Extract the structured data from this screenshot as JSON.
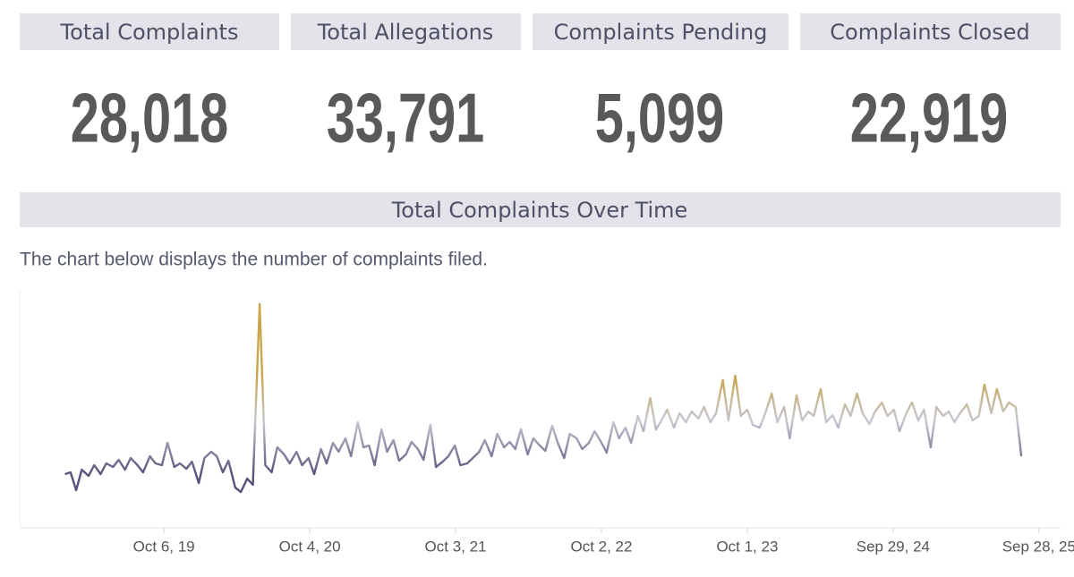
{
  "kpis": [
    {
      "label": "Total Complaints",
      "value": "28,018"
    },
    {
      "label": "Total Allegations",
      "value": "33,791"
    },
    {
      "label": "Complaints Pending",
      "value": "5,099"
    },
    {
      "label": "Complaints Closed",
      "value": "22,919"
    }
  ],
  "chart_data": {
    "type": "line",
    "title": "Total Complaints Over Time",
    "subtitle": "The chart below displays the number of complaints filed.",
    "x": [
      "2019-02-01",
      "2019-02-15",
      "2019-03-01",
      "2019-03-15",
      "2019-04-01",
      "2019-04-15",
      "2019-05-01",
      "2019-05-15",
      "2019-06-01",
      "2019-06-15",
      "2019-07-01",
      "2019-07-15",
      "2019-08-01",
      "2019-08-15",
      "2019-09-01",
      "2019-09-15",
      "2019-10-01",
      "2019-10-15",
      "2019-11-01",
      "2019-11-15",
      "2019-12-01",
      "2019-12-15",
      "2020-01-01",
      "2020-01-15",
      "2020-02-01",
      "2020-02-15",
      "2020-03-01",
      "2020-03-15",
      "2020-04-01",
      "2020-04-15",
      "2020-05-01",
      "2020-05-15",
      "2020-06-01",
      "2020-06-15",
      "2020-07-01",
      "2020-07-15",
      "2020-08-01",
      "2020-08-15",
      "2020-09-01",
      "2020-09-15",
      "2020-10-01",
      "2020-10-15",
      "2020-11-01",
      "2020-11-15",
      "2020-12-01",
      "2020-12-15",
      "2021-01-01",
      "2021-01-15",
      "2021-02-01",
      "2021-02-15",
      "2021-03-01",
      "2021-03-15",
      "2021-04-01",
      "2021-04-15",
      "2021-05-01",
      "2021-05-15",
      "2021-06-01",
      "2021-06-15",
      "2021-07-01",
      "2021-07-15",
      "2021-08-01",
      "2021-08-15",
      "2021-09-01",
      "2021-09-15",
      "2021-10-01",
      "2021-10-15",
      "2021-11-01",
      "2021-11-15",
      "2021-12-01",
      "2021-12-15",
      "2022-01-01",
      "2022-01-15",
      "2022-02-01",
      "2022-02-15",
      "2022-03-01",
      "2022-03-15",
      "2022-04-01",
      "2022-04-15",
      "2022-05-01",
      "2022-05-15",
      "2022-06-01",
      "2022-06-15",
      "2022-07-01",
      "2022-07-15",
      "2022-08-01",
      "2022-08-15",
      "2022-09-01",
      "2022-09-15",
      "2022-10-01",
      "2022-10-15",
      "2022-11-01",
      "2022-11-15",
      "2022-12-01",
      "2022-12-15",
      "2023-01-01",
      "2023-01-15",
      "2023-02-01",
      "2023-02-15",
      "2023-03-01",
      "2023-03-15",
      "2023-04-01",
      "2023-04-15",
      "2023-05-01",
      "2023-05-15",
      "2023-06-01",
      "2023-06-15",
      "2023-07-01",
      "2023-07-15",
      "2023-08-01",
      "2023-08-15",
      "2023-09-01",
      "2023-09-15",
      "2023-10-01",
      "2023-10-15",
      "2023-11-01",
      "2023-11-15",
      "2023-12-01",
      "2023-12-15",
      "2024-01-01",
      "2024-01-15",
      "2024-02-01",
      "2024-02-15",
      "2024-03-01",
      "2024-03-15",
      "2024-04-01",
      "2024-04-15",
      "2024-05-01",
      "2024-05-15",
      "2024-06-01",
      "2024-06-15",
      "2024-07-01",
      "2024-07-15",
      "2024-08-01",
      "2024-08-15",
      "2024-09-01",
      "2024-09-15",
      "2024-10-01",
      "2024-10-15",
      "2024-11-01",
      "2024-11-15",
      "2024-12-01",
      "2024-12-15",
      "2025-01-01",
      "2025-01-15",
      "2025-02-01",
      "2025-02-15",
      "2025-03-01",
      "2025-03-15",
      "2025-04-01",
      "2025-04-15",
      "2025-05-01",
      "2025-05-15",
      "2025-06-01",
      "2025-06-15",
      "2025-07-01",
      "2025-07-15",
      "2025-08-01",
      "2025-08-15"
    ],
    "values": [
      60,
      62,
      42,
      65,
      58,
      70,
      60,
      72,
      68,
      76,
      65,
      78,
      70,
      62,
      80,
      72,
      70,
      95,
      68,
      72,
      66,
      74,
      50,
      78,
      85,
      80,
      62,
      75,
      45,
      40,
      55,
      48,
      250,
      70,
      62,
      90,
      82,
      72,
      85,
      70,
      78,
      60,
      88,
      72,
      95,
      85,
      100,
      80,
      118,
      90,
      92,
      70,
      110,
      85,
      98,
      75,
      82,
      96,
      88,
      76,
      115,
      68,
      74,
      80,
      92,
      70,
      72,
      78,
      85,
      98,
      80,
      105,
      90,
      96,
      88,
      110,
      82,
      100,
      92,
      86,
      114,
      95,
      78,
      105,
      100,
      88,
      95,
      108,
      96,
      84,
      118,
      100,
      112,
      95,
      125,
      108,
      145,
      110,
      120,
      132,
      112,
      128,
      118,
      130,
      122,
      135,
      118,
      128,
      165,
      120,
      170,
      125,
      132,
      115,
      112,
      128,
      150,
      118,
      135,
      100,
      148,
      120,
      130,
      125,
      155,
      118,
      126,
      112,
      138,
      125,
      150,
      128,
      116,
      130,
      140,
      125,
      132,
      108,
      128,
      140,
      120,
      132,
      90,
      135,
      125,
      130,
      118,
      128,
      138,
      120,
      125,
      160,
      128,
      155,
      130,
      140,
      135,
      80
    ],
    "color_stops": [
      {
        "value": 60,
        "color": "#55537a"
      },
      {
        "value": 120,
        "color": "#c7c7d4"
      },
      {
        "value": 170,
        "color": "#c9a64c"
      }
    ],
    "xlim": [
      "2018-10-11",
      "2025-11-21"
    ],
    "ylim": [
      0,
      260
    ],
    "xticks": [
      {
        "value": "2019-10-06",
        "label": "Oct 6, 19"
      },
      {
        "value": "2020-10-04",
        "label": "Oct 4, 20"
      },
      {
        "value": "2021-10-03",
        "label": "Oct 3, 21"
      },
      {
        "value": "2022-10-02",
        "label": "Oct 2, 22"
      },
      {
        "value": "2023-10-01",
        "label": "Oct 1, 23"
      },
      {
        "value": "2024-09-29",
        "label": "Sep 29, 24"
      },
      {
        "value": "2025-09-28",
        "label": "Sep 28, 25"
      }
    ]
  }
}
